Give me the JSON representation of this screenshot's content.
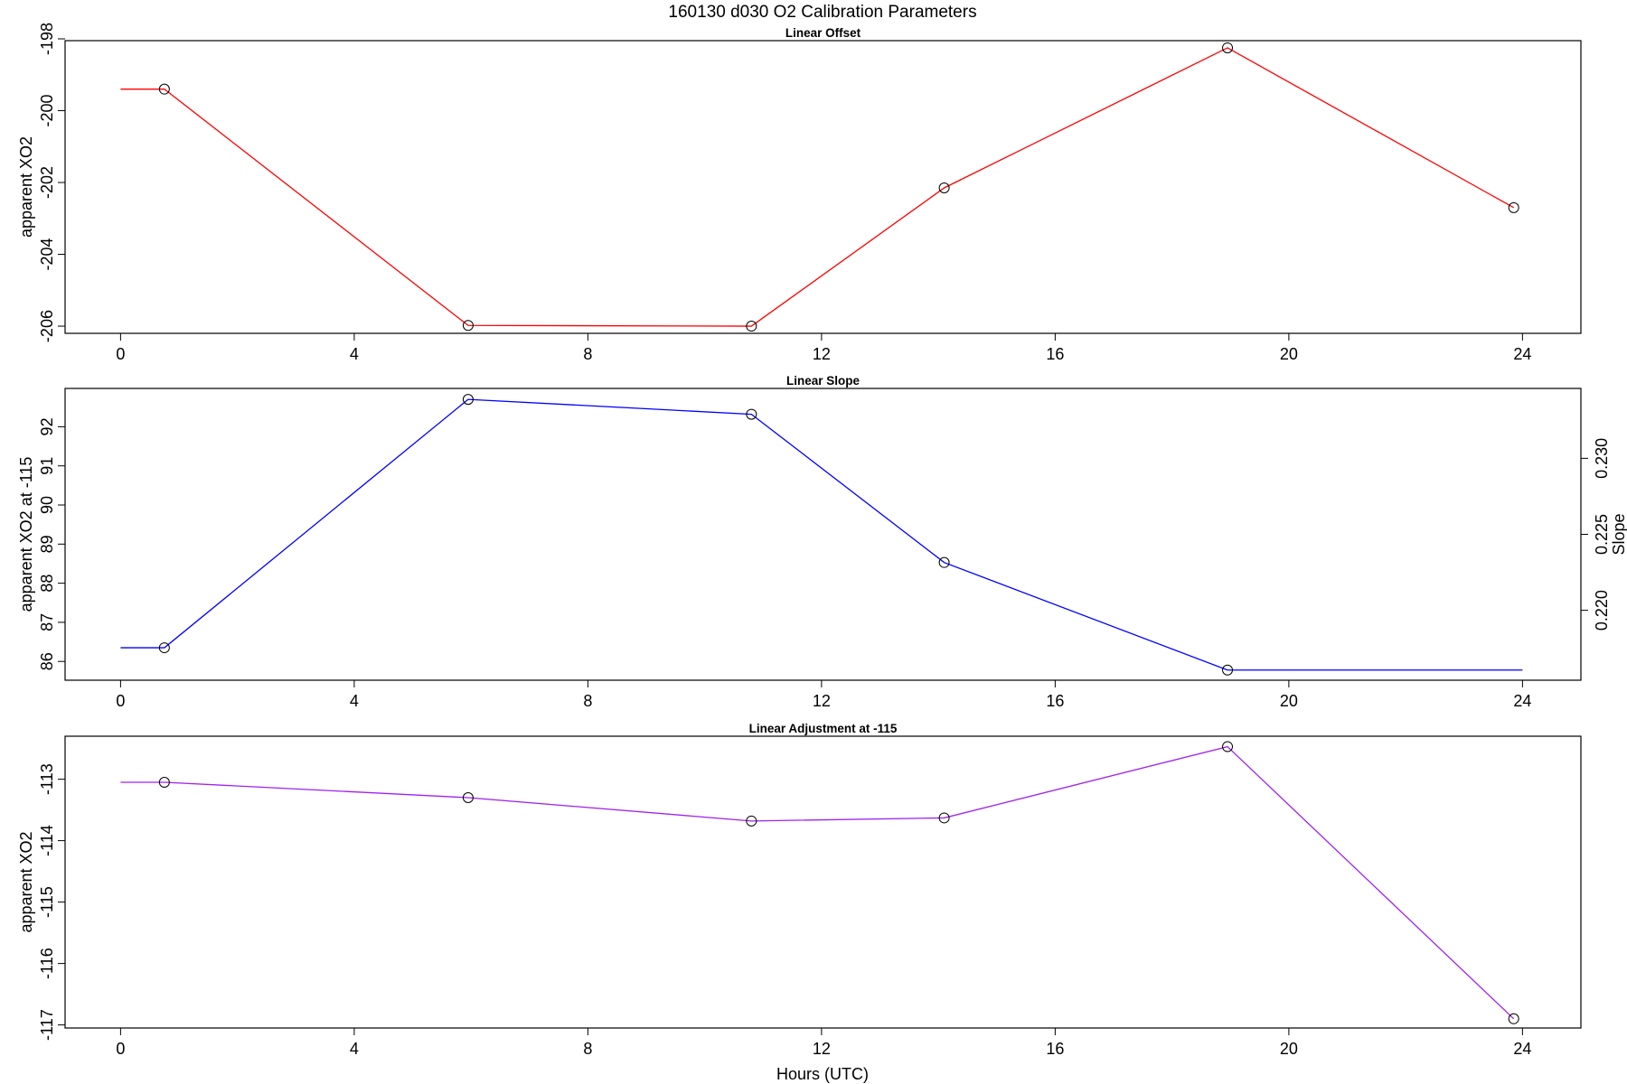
{
  "figure": {
    "title": "160130   d030   O2 Calibration Parameters",
    "xlabel": "Hours (UTC)"
  },
  "chart_data": [
    {
      "type": "line",
      "title": "Linear Offset",
      "xlabel": "",
      "ylabel": "apparent XO2",
      "color": "#ff0000",
      "xlim": [
        -0.95,
        25
      ],
      "ylim": [
        -206.2,
        -198.05
      ],
      "xticks": [
        0,
        4,
        8,
        12,
        16,
        20,
        24
      ],
      "xtick_labels": [
        "0",
        "4",
        "8",
        "12",
        "16",
        "20",
        "24"
      ],
      "yticks": [
        -198,
        -200,
        -202,
        -204,
        -206
      ],
      "ytick_labels": [
        "-198",
        "-200",
        "-202",
        "-204",
        "-206"
      ],
      "x": [
        0,
        0.75,
        5.95,
        10.8,
        14.1,
        18.95,
        23.85
      ],
      "y": [
        -199.4,
        -199.4,
        -205.98,
        -206.0,
        -202.15,
        -198.25,
        -202.7
      ],
      "markers": [
        false,
        true,
        true,
        true,
        true,
        true,
        true
      ]
    },
    {
      "type": "line",
      "title": "Linear Slope",
      "xlabel": "",
      "ylabel": "apparent XO2 at -115",
      "ylabel_right": "Slope",
      "color": "#0000ff",
      "xlim": [
        -0.95,
        25
      ],
      "ylim": [
        85.52,
        92.98
      ],
      "xticks": [
        0,
        4,
        8,
        12,
        16,
        20,
        24
      ],
      "xtick_labels": [
        "0",
        "4",
        "8",
        "12",
        "16",
        "20",
        "24"
      ],
      "yticks": [
        86,
        87,
        88,
        89,
        90,
        91,
        92
      ],
      "ytick_labels": [
        "86",
        "87",
        "88",
        "89",
        "90",
        "91",
        "92"
      ],
      "right_ylim": [
        0.2154,
        0.2346
      ],
      "right_yticks": [
        0.22,
        0.225,
        0.23
      ],
      "right_ytick_labels": [
        "0.220",
        "0.225",
        "0.230"
      ],
      "x": [
        0,
        0.75,
        5.95,
        10.8,
        14.1,
        18.95,
        24
      ],
      "y": [
        86.35,
        86.35,
        92.7,
        92.32,
        88.53,
        85.78,
        85.78
      ],
      "markers": [
        false,
        true,
        true,
        true,
        true,
        true,
        false
      ]
    },
    {
      "type": "line",
      "title": "Linear Adjustment at -115",
      "xlabel": "Hours (UTC)",
      "ylabel": "apparent XO2",
      "color": "#a020f0",
      "xlim": [
        -0.95,
        25
      ],
      "ylim": [
        -117.05,
        -112.3
      ],
      "xticks": [
        0,
        4,
        8,
        12,
        16,
        20,
        24
      ],
      "xtick_labels": [
        "0",
        "4",
        "8",
        "12",
        "16",
        "20",
        "24"
      ],
      "yticks": [
        -113,
        -114,
        -115,
        -116,
        -117
      ],
      "ytick_labels": [
        "-113",
        "-114",
        "-115",
        "-116",
        "-117"
      ],
      "x": [
        0,
        0.75,
        5.95,
        10.8,
        14.1,
        18.95,
        23.85
      ],
      "y": [
        -113.05,
        -113.05,
        -113.3,
        -113.68,
        -113.63,
        -112.47,
        -116.9
      ],
      "markers": [
        false,
        true,
        true,
        true,
        true,
        true,
        true
      ]
    }
  ]
}
